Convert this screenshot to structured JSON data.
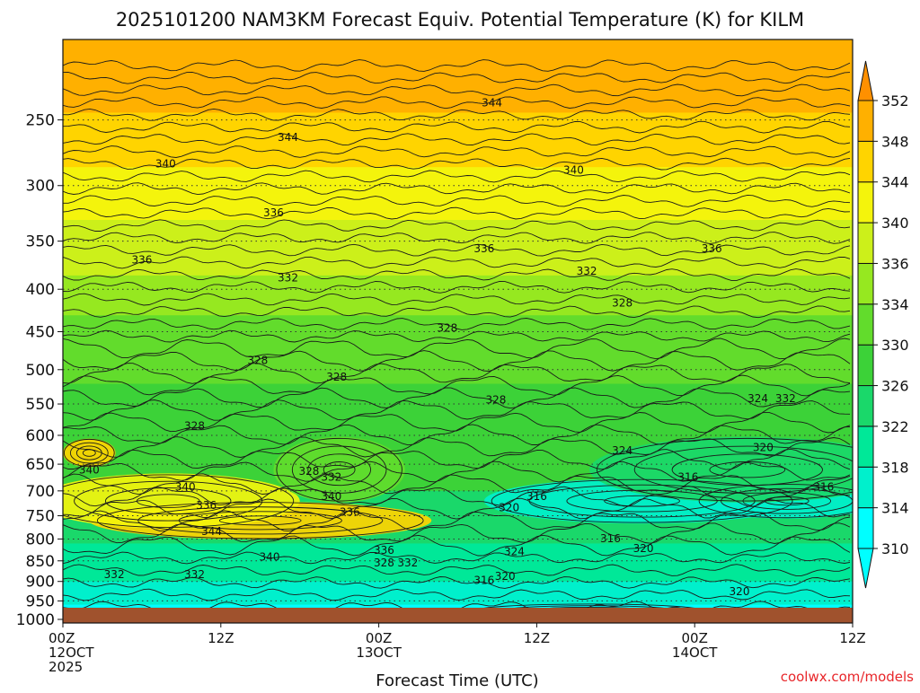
{
  "chart_data": {
    "type": "heatmap",
    "title": "2025101200 NAM3KM Forecast Equiv. Potential Temperature (K) for KILM",
    "xlabel": "Forecast Time (UTC)",
    "ylabel": "",
    "credit": "coolwx.com/models",
    "x_ticks": [
      {
        "hour": 0,
        "line1": "00Z",
        "line2": "12OCT",
        "line3": "2025"
      },
      {
        "hour": 12,
        "line1": "12Z",
        "line2": "",
        "line3": ""
      },
      {
        "hour": 24,
        "line1": "00Z",
        "line2": "13OCT",
        "line3": ""
      },
      {
        "hour": 36,
        "line1": "12Z",
        "line2": "",
        "line3": ""
      },
      {
        "hour": 48,
        "line1": "00Z",
        "line2": "14OCT",
        "line3": ""
      },
      {
        "hour": 60,
        "line1": "12Z",
        "line2": "",
        "line3": ""
      }
    ],
    "x_range_hours": [
      0,
      60
    ],
    "y_range_hpa": [
      1010,
      200
    ],
    "y_ticks": [
      250,
      300,
      350,
      400,
      450,
      500,
      550,
      600,
      650,
      700,
      750,
      800,
      850,
      900,
      950,
      1000
    ],
    "colorbar": {
      "levels": [
        310,
        314,
        318,
        322,
        326,
        330,
        334,
        336,
        340,
        344,
        348,
        352
      ],
      "colors": [
        "#00ffff",
        "#00f0cc",
        "#00e898",
        "#1ad86a",
        "#3cd238",
        "#62dc2c",
        "#96e820",
        "#ccf01a",
        "#f4f40c",
        "#ffd400",
        "#ffb000",
        "#ff9000"
      ]
    },
    "bands": [
      {
        "p_top": 200,
        "value": 350
      },
      {
        "p_top": 245,
        "value": 346
      },
      {
        "p_top": 285,
        "value": 342
      },
      {
        "p_top": 330,
        "value": 338
      },
      {
        "p_top": 385,
        "value": 335
      },
      {
        "p_top": 430,
        "value": 332
      },
      {
        "p_top": 520,
        "value": 329
      },
      {
        "p_top": 620,
        "value": 326
      },
      {
        "p_top": 700,
        "value": 323
      },
      {
        "p_top": 810,
        "value": 320
      },
      {
        "p_top": 900,
        "value": 316
      },
      {
        "p_top": 960,
        "value": 312
      }
    ],
    "features": [
      {
        "hour": 15,
        "p": 760,
        "value": 346,
        "dx": 13,
        "dp": 80
      },
      {
        "hour": 8,
        "p": 720,
        "value": 342,
        "dx": 10,
        "dp": 110
      },
      {
        "hour": 2,
        "p": 630,
        "value": 346,
        "dx": 2,
        "dp": 50
      },
      {
        "hour": 21,
        "p": 660,
        "value": 333,
        "dx": 5,
        "dp": 120
      },
      {
        "hour": 44,
        "p": 720,
        "value": 316,
        "dx": 12,
        "dp": 90
      },
      {
        "hour": 55,
        "p": 720,
        "value": 316,
        "dx": 7,
        "dp": 70
      },
      {
        "hour": 40,
        "p": 975,
        "value": 312,
        "dx": 9,
        "dp": 35
      },
      {
        "hour": 60,
        "p": 985,
        "value": 311,
        "dx": 4,
        "dp": 30
      },
      {
        "hour": 52,
        "p": 660,
        "value": 322,
        "dx": 12,
        "dp": 120
      }
    ],
    "contour_labels": [
      {
        "text": "344",
        "hour": 32.6,
        "p": 238
      },
      {
        "text": "344",
        "hour": 17.1,
        "p": 262
      },
      {
        "text": "340",
        "hour": 7.8,
        "p": 282
      },
      {
        "text": "340",
        "hour": 38.8,
        "p": 287
      },
      {
        "text": "336",
        "hour": 16.0,
        "p": 323
      },
      {
        "text": "336",
        "hour": 32.0,
        "p": 357
      },
      {
        "text": "336",
        "hour": 6.0,
        "p": 368
      },
      {
        "text": "336",
        "hour": 49.3,
        "p": 357
      },
      {
        "text": "332",
        "hour": 17.1,
        "p": 387
      },
      {
        "text": "332",
        "hour": 39.8,
        "p": 380
      },
      {
        "text": "328",
        "hour": 42.5,
        "p": 415
      },
      {
        "text": "328",
        "hour": 29.2,
        "p": 445
      },
      {
        "text": "328",
        "hour": 14.8,
        "p": 487
      },
      {
        "text": "328",
        "hour": 20.8,
        "p": 510
      },
      {
        "text": "328",
        "hour": 32.9,
        "p": 543
      },
      {
        "text": "328",
        "hour": 10.0,
        "p": 584
      },
      {
        "text": "324",
        "hour": 52.8,
        "p": 541
      },
      {
        "text": "332",
        "hour": 54.9,
        "p": 541
      },
      {
        "text": "324",
        "hour": 42.5,
        "p": 625
      },
      {
        "text": "320",
        "hour": 53.2,
        "p": 620
      },
      {
        "text": "340",
        "hour": 2.0,
        "p": 660
      },
      {
        "text": "328",
        "hour": 18.7,
        "p": 662
      },
      {
        "text": "332",
        "hour": 20.4,
        "p": 673
      },
      {
        "text": "316",
        "hour": 47.5,
        "p": 673
      },
      {
        "text": "340",
        "hour": 9.3,
        "p": 692
      },
      {
        "text": "316",
        "hour": 57.8,
        "p": 692
      },
      {
        "text": "316",
        "hour": 36.0,
        "p": 710
      },
      {
        "text": "340",
        "hour": 20.4,
        "p": 710
      },
      {
        "text": "336",
        "hour": 10.9,
        "p": 728
      },
      {
        "text": "320",
        "hour": 33.9,
        "p": 732
      },
      {
        "text": "336",
        "hour": 21.8,
        "p": 742
      },
      {
        "text": "344",
        "hour": 11.3,
        "p": 782
      },
      {
        "text": "316",
        "hour": 41.6,
        "p": 798
      },
      {
        "text": "336",
        "hour": 24.4,
        "p": 824
      },
      {
        "text": "324",
        "hour": 34.3,
        "p": 827
      },
      {
        "text": "320",
        "hour": 44.1,
        "p": 820
      },
      {
        "text": "340",
        "hour": 15.7,
        "p": 840
      },
      {
        "text": "328",
        "hour": 24.4,
        "p": 854
      },
      {
        "text": "332",
        "hour": 26.2,
        "p": 854
      },
      {
        "text": "332",
        "hour": 3.9,
        "p": 882
      },
      {
        "text": "332",
        "hour": 10.0,
        "p": 882
      },
      {
        "text": "320",
        "hour": 33.6,
        "p": 886
      },
      {
        "text": "316",
        "hour": 32.0,
        "p": 896
      },
      {
        "text": "320",
        "hour": 51.4,
        "p": 925
      }
    ]
  }
}
